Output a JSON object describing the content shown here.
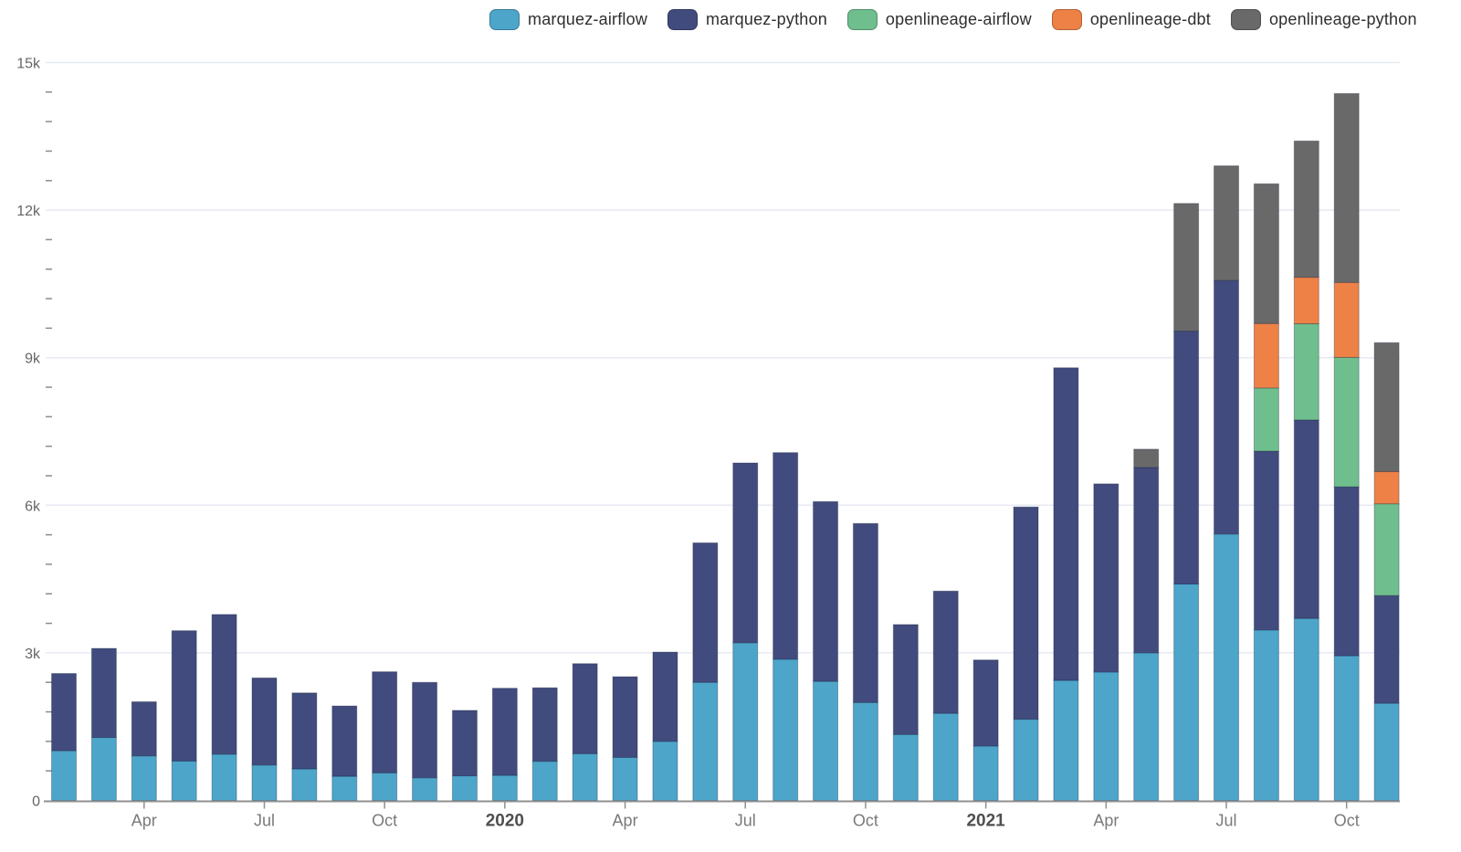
{
  "chart_data": {
    "type": "bar",
    "stacked": true,
    "title": "",
    "xlabel": "",
    "ylabel": "",
    "legend_position": "top",
    "grid": "horizontal-major",
    "ylim": [
      0,
      15000
    ],
    "y_minor_interval": 600,
    "y_ticks": [
      {
        "value": 0,
        "label": "0"
      },
      {
        "value": 3000,
        "label": "3k"
      },
      {
        "value": 6000,
        "label": "6k"
      },
      {
        "value": 9000,
        "label": "9k"
      },
      {
        "value": 12000,
        "label": "12k"
      },
      {
        "value": 15000,
        "label": "15k"
      }
    ],
    "x": [
      "2019-02",
      "2019-03",
      "2019-04",
      "2019-05",
      "2019-06",
      "2019-07",
      "2019-08",
      "2019-09",
      "2019-10",
      "2019-11",
      "2019-12",
      "2020-01",
      "2020-02",
      "2020-03",
      "2020-04",
      "2020-05",
      "2020-06",
      "2020-07",
      "2020-08",
      "2020-09",
      "2020-10",
      "2020-11",
      "2020-12",
      "2021-01",
      "2021-02",
      "2021-03",
      "2021-04",
      "2021-05",
      "2021-06",
      "2021-07",
      "2021-08",
      "2021-09",
      "2021-10",
      "2021-11"
    ],
    "x_ticks": [
      {
        "month": "2019-04",
        "label": "Apr",
        "bold": false
      },
      {
        "month": "2019-07",
        "label": "Jul",
        "bold": false
      },
      {
        "month": "2019-10",
        "label": "Oct",
        "bold": false
      },
      {
        "month": "2020-01",
        "label": "2020",
        "bold": true
      },
      {
        "month": "2020-04",
        "label": "Apr",
        "bold": false
      },
      {
        "month": "2020-07",
        "label": "Jul",
        "bold": false
      },
      {
        "month": "2020-10",
        "label": "Oct",
        "bold": false
      },
      {
        "month": "2021-01",
        "label": "2021",
        "bold": true
      },
      {
        "month": "2021-04",
        "label": "Apr",
        "bold": false
      },
      {
        "month": "2021-07",
        "label": "Jul",
        "bold": false
      },
      {
        "month": "2021-10",
        "label": "Oct",
        "bold": false
      }
    ],
    "series": [
      {
        "name": "marquez-airflow",
        "color": "#4DA5CA",
        "values": [
          1010,
          1280,
          905,
          800,
          940,
          720,
          640,
          490,
          560,
          460,
          500,
          510,
          795,
          950,
          875,
          1200,
          2400,
          3205,
          2870,
          2420,
          1990,
          1340,
          1770,
          1105,
          1650,
          2440,
          2610,
          3000,
          4400,
          5415,
          3465,
          3700,
          2940,
          1975
        ]
      },
      {
        "name": "marquez-python",
        "color": "#414B7D",
        "values": [
          1570,
          1810,
          1100,
          2650,
          2840,
          1770,
          1545,
          1430,
          2055,
          1940,
          1330,
          1770,
          1495,
          1830,
          1640,
          1815,
          2835,
          3655,
          4200,
          3655,
          3640,
          2235,
          2485,
          1750,
          4315,
          6355,
          3825,
          3770,
          5140,
          5155,
          3635,
          4035,
          3435,
          2190
        ]
      },
      {
        "name": "openlineage-airflow",
        "color": "#6FBE8E",
        "values": [
          0,
          0,
          0,
          0,
          0,
          0,
          0,
          0,
          0,
          0,
          0,
          0,
          0,
          0,
          0,
          0,
          0,
          0,
          0,
          0,
          0,
          0,
          0,
          0,
          0,
          0,
          0,
          0,
          0,
          0,
          1285,
          1955,
          2630,
          1865
        ]
      },
      {
        "name": "openlineage-dbt",
        "color": "#ED8146",
        "values": [
          0,
          0,
          0,
          0,
          0,
          0,
          0,
          0,
          0,
          0,
          0,
          0,
          0,
          0,
          0,
          0,
          0,
          0,
          0,
          0,
          0,
          0,
          0,
          0,
          0,
          0,
          0,
          0,
          0,
          0,
          1310,
          945,
          1525,
          655
        ]
      },
      {
        "name": "openlineage-python",
        "color": "#696969",
        "values": [
          0,
          0,
          0,
          0,
          0,
          0,
          0,
          0,
          0,
          0,
          0,
          0,
          0,
          0,
          0,
          0,
          0,
          0,
          0,
          0,
          0,
          0,
          0,
          0,
          0,
          0,
          0,
          370,
          2595,
          2330,
          2840,
          2770,
          3840,
          2620
        ]
      }
    ],
    "colors": {
      "grid": "#e7eaf3",
      "axis": "#8f8f8f",
      "tick": "#8c8c8c",
      "y_label": "#666666",
      "x_label": "#7a7a7a",
      "x_label_year": "#4f4f4f",
      "background": "#ffffff"
    }
  }
}
